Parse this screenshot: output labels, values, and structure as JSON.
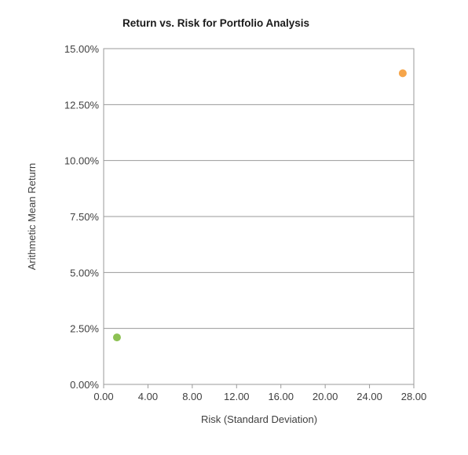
{
  "chart_data": {
    "type": "scatter",
    "title": "Return vs. Risk for Portfolio Analysis",
    "xlabel": "Risk (Standard Deviation)",
    "ylabel": "Arithmetic Mean Return",
    "xlim": [
      0,
      28
    ],
    "ylim": [
      0,
      0.15
    ],
    "x_ticks": [
      "0.00",
      "4.00",
      "8.00",
      "12.00",
      "16.00",
      "20.00",
      "24.00",
      "28.00"
    ],
    "y_ticks": [
      "0.00%",
      "2.50%",
      "5.00%",
      "7.50%",
      "10.00%",
      "12.50%",
      "15.00%"
    ],
    "grid": "horizontal",
    "legend": "none",
    "points": [
      {
        "x": 1.2,
        "y": 0.021,
        "color": "#8dc153"
      },
      {
        "x": 27.0,
        "y": 0.139,
        "color": "#f6a54a"
      }
    ]
  }
}
